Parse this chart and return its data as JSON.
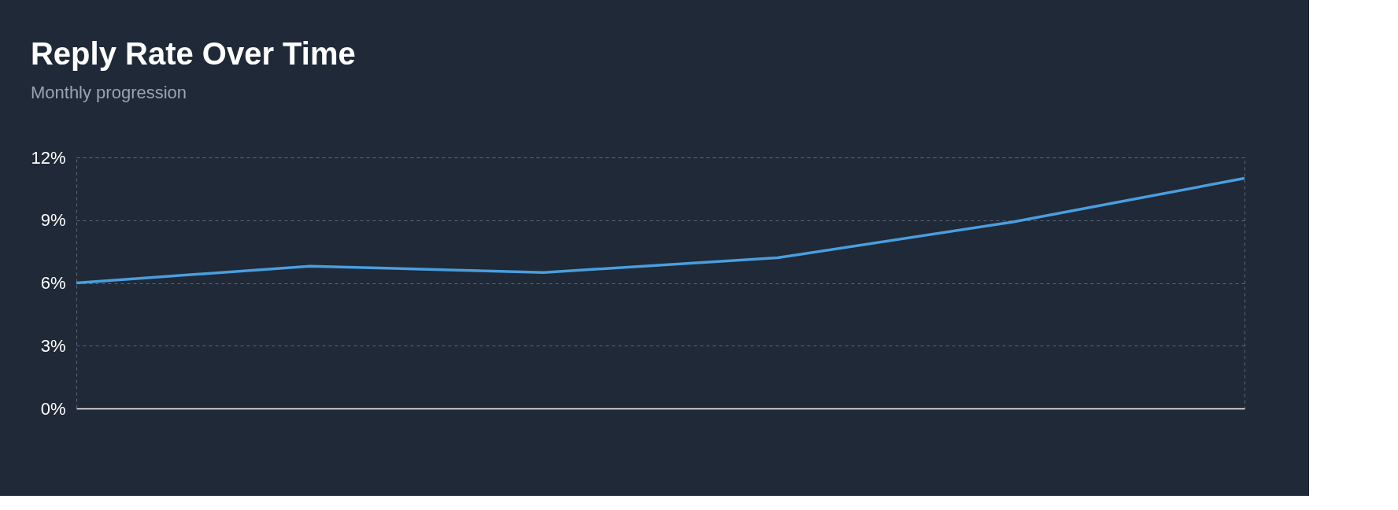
{
  "chart_data": {
    "type": "line",
    "title": "Reply Rate Over Time",
    "subtitle": "Monthly progression",
    "categories": [
      null,
      null,
      null,
      null,
      null,
      null
    ],
    "series": [
      {
        "color": "#4a9ede",
        "values": [
          6.0,
          6.8,
          6.5,
          7.2,
          8.9,
          11.0
        ]
      }
    ],
    "ylim": [
      0,
      12
    ],
    "yticks": [
      {
        "value": 0,
        "label": "0%"
      },
      {
        "value": 3,
        "label": "3%"
      },
      {
        "value": 6,
        "label": "6%"
      },
      {
        "value": 9,
        "label": "9%"
      },
      {
        "value": 12,
        "label": "12%"
      }
    ],
    "grid": "y",
    "legend": false,
    "tick_labels": "y",
    "marker": "none",
    "line_style": "solid"
  }
}
